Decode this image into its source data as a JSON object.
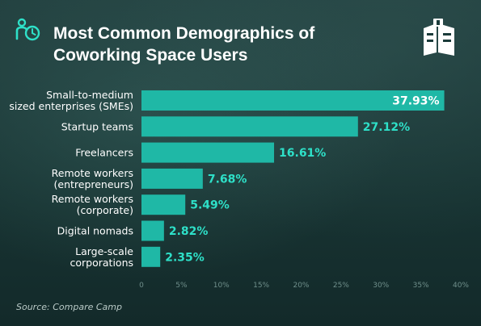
{
  "title_line1": "Most Common Demographics of",
  "title_line2": "Coworking Space Users",
  "source": "Source: Compare Camp",
  "colors": {
    "bar": "#1fb8a6",
    "label": "#ffffff",
    "value": "#2ee0c8",
    "tick": "#6f8f8b"
  },
  "chart_data": {
    "type": "bar",
    "orientation": "horizontal",
    "categories": [
      [
        "Small-to-medium",
        "sized enterprises (SMEs)"
      ],
      [
        "Startup teams"
      ],
      [
        "Freelancers"
      ],
      [
        "Remote workers",
        "(entrepreneurs)"
      ],
      [
        "Remote workers",
        "(corporate)"
      ],
      [
        "Digital nomads"
      ],
      [
        "Large-scale",
        "corporations"
      ]
    ],
    "values": [
      37.93,
      27.12,
      16.61,
      7.68,
      5.49,
      2.82,
      2.35
    ],
    "value_labels": [
      "37.93%",
      "27.12%",
      "16.61%",
      "7.68%",
      "5.49%",
      "2.82%",
      "2.35%"
    ],
    "xlim": [
      0,
      40
    ],
    "ticks": [
      0,
      5,
      10,
      15,
      20,
      25,
      30,
      35,
      40
    ],
    "tick_labels": [
      "0",
      "5%",
      "10%",
      "15%",
      "20%",
      "25%",
      "30%",
      "35%",
      "40%"
    ],
    "grid": false,
    "legend": "none"
  }
}
